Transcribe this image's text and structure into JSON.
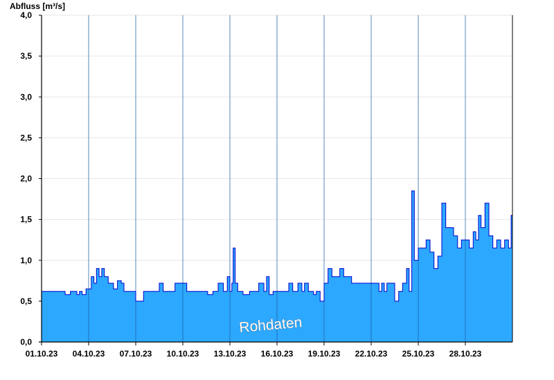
{
  "chart_data": {
    "type": "area",
    "ylabel": "Abfluss [m³/s]",
    "watermark": "Rohdaten",
    "ylim": [
      0,
      4.0
    ],
    "xlim": [
      "2023-10-01",
      "2023-10-31"
    ],
    "grid": true,
    "y_ticks": [
      "0,0",
      "0,5",
      "1,0",
      "1,5",
      "2,0",
      "2,5",
      "3,0",
      "3,5",
      "4,0"
    ],
    "x_ticks": [
      "01.10.23",
      "04.10.23",
      "07.10.23",
      "10.10.23",
      "13.10.23",
      "16.10.23",
      "19.10.23",
      "22.10.23",
      "25.10.23",
      "28.10.23"
    ],
    "colors": {
      "fill": "#2ca8ff",
      "line": "#0000cc",
      "grid": "#e6e6e6",
      "axis": "#000000",
      "divider": "#1c5fa0"
    },
    "series": [
      {
        "x": [
          "2023-10-01 00:00",
          "2023-10-02 06:00",
          "2023-10-02 12:00",
          "2023-10-02 20:00",
          "2023-10-03 06:00",
          "2023-10-03 10:00",
          "2023-10-03 14:00",
          "2023-10-03 20:00",
          "2023-10-04 04:00",
          "2023-10-04 08:00",
          "2023-10-04 12:00",
          "2023-10-04 16:00",
          "2023-10-04 20:00",
          "2023-10-05 00:00",
          "2023-10-05 06:00",
          "2023-10-05 10:00",
          "2023-10-05 14:00",
          "2023-10-05 20:00",
          "2023-10-06 02:00",
          "2023-10-06 06:00",
          "2023-10-06 12:00",
          "2023-10-07 00:00",
          "2023-10-07 12:00",
          "2023-10-07 18:00",
          "2023-10-08 12:00",
          "2023-10-08 18:00",
          "2023-10-09 12:00",
          "2023-10-10 06:00",
          "2023-10-10 18:00",
          "2023-10-11 06:00",
          "2023-10-11 14:00",
          "2023-10-11 22:00",
          "2023-10-12 06:00",
          "2023-10-12 14:00",
          "2023-10-12 20:00",
          "2023-10-13 00:00",
          "2023-10-13 03:00",
          "2023-10-13 05:00",
          "2023-10-13 08:00",
          "2023-10-13 12:00",
          "2023-10-13 20:00",
          "2023-10-14 06:00",
          "2023-10-14 12:00",
          "2023-10-14 20:00",
          "2023-10-15 04:00",
          "2023-10-15 08:00",
          "2023-10-15 12:00",
          "2023-10-15 18:00",
          "2023-10-16 06:00",
          "2023-10-16 12:00",
          "2023-10-16 18:00",
          "2023-10-17 00:00",
          "2023-10-17 08:00",
          "2023-10-17 14:00",
          "2023-10-17 18:00",
          "2023-10-18 00:00",
          "2023-10-18 08:00",
          "2023-10-18 12:00",
          "2023-10-18 18:00",
          "2023-10-19 00:00",
          "2023-10-19 06:00",
          "2023-10-19 12:00",
          "2023-10-19 18:00",
          "2023-10-20 00:00",
          "2023-10-20 06:00",
          "2023-10-20 12:00",
          "2023-10-20 18:00",
          "2023-10-21 00:00",
          "2023-10-21 12:00",
          "2023-10-22 00:00",
          "2023-10-22 12:00",
          "2023-10-22 16:00",
          "2023-10-22 20:00",
          "2023-10-23 00:00",
          "2023-10-23 06:00",
          "2023-10-23 12:00",
          "2023-10-23 18:00",
          "2023-10-24 00:00",
          "2023-10-24 06:00",
          "2023-10-24 10:00",
          "2023-10-24 14:00",
          "2023-10-24 18:00",
          "2023-10-25 00:00",
          "2023-10-25 06:00",
          "2023-10-25 12:00",
          "2023-10-25 18:00",
          "2023-10-26 00:00",
          "2023-10-26 06:00",
          "2023-10-26 12:00",
          "2023-10-26 18:00",
          "2023-10-27 00:00",
          "2023-10-27 06:00",
          "2023-10-27 12:00",
          "2023-10-27 18:00",
          "2023-10-28 00:00",
          "2023-10-28 06:00",
          "2023-10-28 12:00",
          "2023-10-28 16:00",
          "2023-10-28 20:00",
          "2023-10-29 00:00",
          "2023-10-29 06:00",
          "2023-10-29 12:00",
          "2023-10-29 18:00",
          "2023-10-30 00:00",
          "2023-10-30 06:00",
          "2023-10-30 12:00",
          "2023-10-30 18:00",
          "2023-10-30 22:00",
          "2023-10-31 00:00"
        ],
        "values": [
          0.62,
          0.62,
          0.58,
          0.62,
          0.58,
          0.62,
          0.58,
          0.65,
          0.8,
          0.72,
          0.9,
          0.8,
          0.9,
          0.8,
          0.72,
          0.72,
          0.65,
          0.75,
          0.72,
          0.62,
          0.62,
          0.5,
          0.62,
          0.62,
          0.72,
          0.62,
          0.72,
          0.62,
          0.62,
          0.62,
          0.58,
          0.62,
          0.72,
          0.62,
          0.8,
          0.62,
          0.72,
          1.15,
          0.72,
          0.62,
          0.58,
          0.62,
          0.62,
          0.72,
          0.62,
          0.8,
          0.58,
          0.62,
          0.62,
          0.62,
          0.72,
          0.62,
          0.72,
          0.62,
          0.72,
          0.62,
          0.58,
          0.62,
          0.5,
          0.72,
          0.9,
          0.8,
          0.8,
          0.9,
          0.8,
          0.8,
          0.72,
          0.72,
          0.72,
          0.72,
          0.62,
          0.72,
          0.62,
          0.72,
          0.72,
          0.5,
          0.62,
          0.72,
          0.9,
          0.62,
          1.85,
          1.0,
          1.15,
          1.15,
          1.25,
          1.1,
          0.9,
          1.05,
          1.7,
          1.4,
          1.4,
          1.3,
          1.15,
          1.25,
          1.25,
          1.15,
          1.35,
          1.25,
          1.55,
          1.4,
          1.7,
          1.3,
          1.15,
          1.25,
          1.15,
          1.25,
          1.15,
          1.55,
          1.3
        ]
      }
    ]
  }
}
